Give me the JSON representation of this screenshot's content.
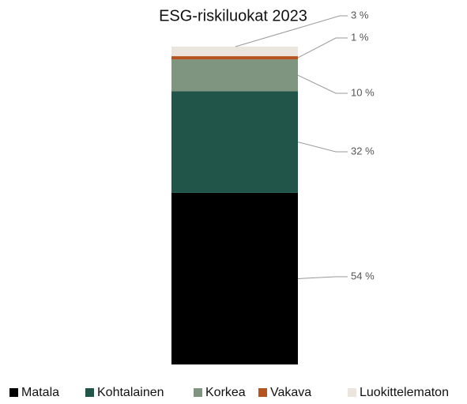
{
  "chart_data": {
    "type": "stacked_bar",
    "title": "ESG-riskiluokat 2023",
    "categories": [
      null
    ],
    "series": [
      {
        "name": "Matala",
        "color": "#000000",
        "values": [
          54
        ],
        "value_labels": [
          "54 %"
        ]
      },
      {
        "name": "Kohtalainen",
        "color": "#22554a",
        "values": [
          32
        ],
        "value_labels": [
          "32 %"
        ]
      },
      {
        "name": "Korkea",
        "color": "#7f9580",
        "values": [
          10
        ],
        "value_labels": [
          "10 %"
        ]
      },
      {
        "name": "Vakava",
        "color": "#b5541e",
        "values": [
          1
        ],
        "value_labels": [
          "1 %"
        ]
      },
      {
        "name": "Luokittelematon",
        "color": "#ebe5dd",
        "values": [
          3
        ],
        "value_labels": [
          "3 %"
        ]
      }
    ],
    "legend": "bottom"
  }
}
